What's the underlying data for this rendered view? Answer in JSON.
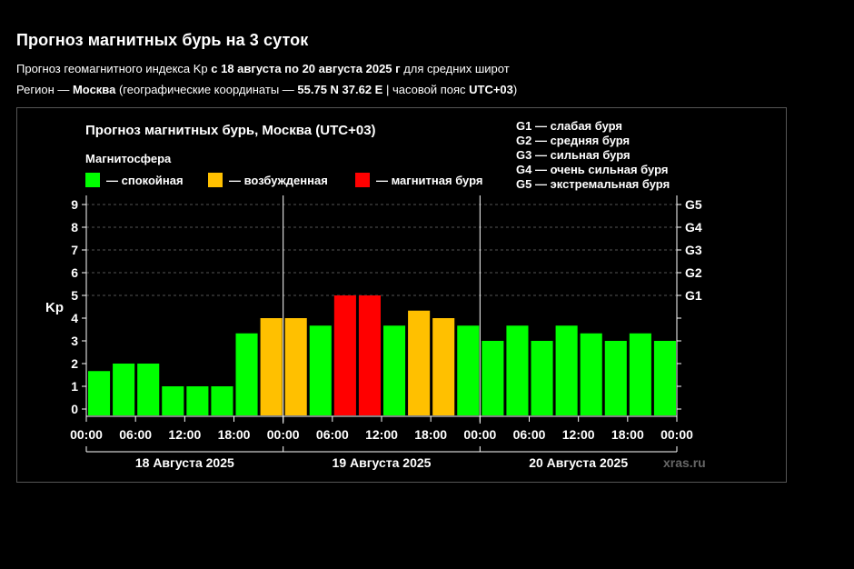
{
  "page": {
    "title": "Прогноз магнитных бурь на 3 суток",
    "line1": {
      "prefix": "Прогноз геомагнитного индекса Kp ",
      "dates": "с 18 августа по 20 августа 2025 г",
      "suffix": " для средних широт"
    },
    "line2": {
      "prefix": "Регион — ",
      "region": "Москва",
      "coords_label": " (географические координаты — ",
      "coords": "55.75 N 37.62 E",
      "tz_label": " | часовой пояс ",
      "tz": "UTC+03",
      "suffix": ")"
    }
  },
  "chart_data": {
    "type": "bar",
    "title": "Прогноз магнитных бурь, Москва (UTC+03)",
    "ylabel": "Kp",
    "ylim": [
      0,
      9
    ],
    "yticks": [
      "0",
      "1",
      "2",
      "3",
      "4",
      "5",
      "6",
      "7",
      "8",
      "9"
    ],
    "storm_levels": [
      {
        "label": "G1",
        "kp": 5
      },
      {
        "label": "G2",
        "kp": 6
      },
      {
        "label": "G3",
        "kp": 7
      },
      {
        "label": "G4",
        "kp": 8
      },
      {
        "label": "G5",
        "kp": 9
      }
    ],
    "storm_legend": [
      "G1 — слабая буря",
      "G2 — средняя буря",
      "G3 — сильная буря",
      "G4 — очень сильная буря",
      "G5 — экстремальная буря"
    ],
    "legend_title": "Магнитосфера",
    "legend": [
      {
        "label": "— спокойная",
        "color": "#00ff00"
      },
      {
        "label": "— возбужденная",
        "color": "#ffc000"
      },
      {
        "label": "— магнитная буря",
        "color": "#ff0000"
      }
    ],
    "colors": {
      "quiet": "#00ff00",
      "active": "#ffc000",
      "storm": "#ff0000"
    },
    "xticks": [
      "00:00",
      "06:00",
      "12:00",
      "18:00",
      "00:00",
      "06:00",
      "12:00",
      "18:00",
      "00:00",
      "06:00",
      "12:00",
      "18:00",
      "00:00"
    ],
    "days": [
      "18 Августа 2025",
      "19 Августа 2025",
      "20 Августа 2025"
    ],
    "values": [
      1.67,
      2.0,
      2.0,
      1.0,
      1.0,
      1.0,
      3.33,
      4.0,
      4.0,
      3.67,
      5.0,
      5.0,
      3.67,
      4.33,
      4.0,
      3.67,
      3.0,
      3.67,
      3.0,
      3.67,
      3.33,
      3.0,
      3.33,
      3.0
    ],
    "bar_status": [
      "quiet",
      "quiet",
      "quiet",
      "quiet",
      "quiet",
      "quiet",
      "quiet",
      "active",
      "active",
      "quiet",
      "storm",
      "storm",
      "quiet",
      "active",
      "active",
      "quiet",
      "quiet",
      "quiet",
      "quiet",
      "quiet",
      "quiet",
      "quiet",
      "quiet",
      "quiet"
    ],
    "watermark": "xras.ru",
    "grid": true
  }
}
